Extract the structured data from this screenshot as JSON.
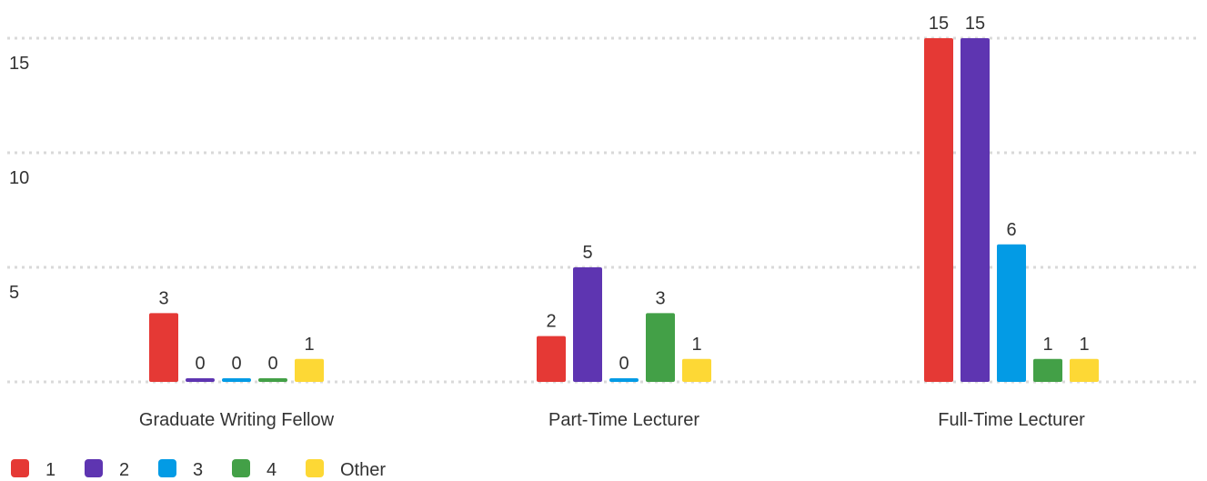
{
  "chart_data": {
    "type": "bar",
    "categories": [
      "Graduate Writing Fellow",
      "Part-Time Lecturer",
      "Full-Time Lecturer"
    ],
    "series": [
      {
        "name": "1",
        "color": "#e53935",
        "values": [
          3,
          2,
          15
        ]
      },
      {
        "name": "2",
        "color": "#5e35b1",
        "values": [
          0,
          5,
          15
        ]
      },
      {
        "name": "3",
        "color": "#039be5",
        "values": [
          0,
          0,
          6
        ]
      },
      {
        "name": "4",
        "color": "#43a047",
        "values": [
          0,
          3,
          1
        ]
      },
      {
        "name": "Other",
        "color": "#fdd835",
        "values": [
          1,
          1,
          1
        ]
      }
    ],
    "ylim": [
      0,
      15
    ],
    "yticks": [
      5,
      10,
      15
    ],
    "grid": true,
    "legend": "bottom-left"
  }
}
